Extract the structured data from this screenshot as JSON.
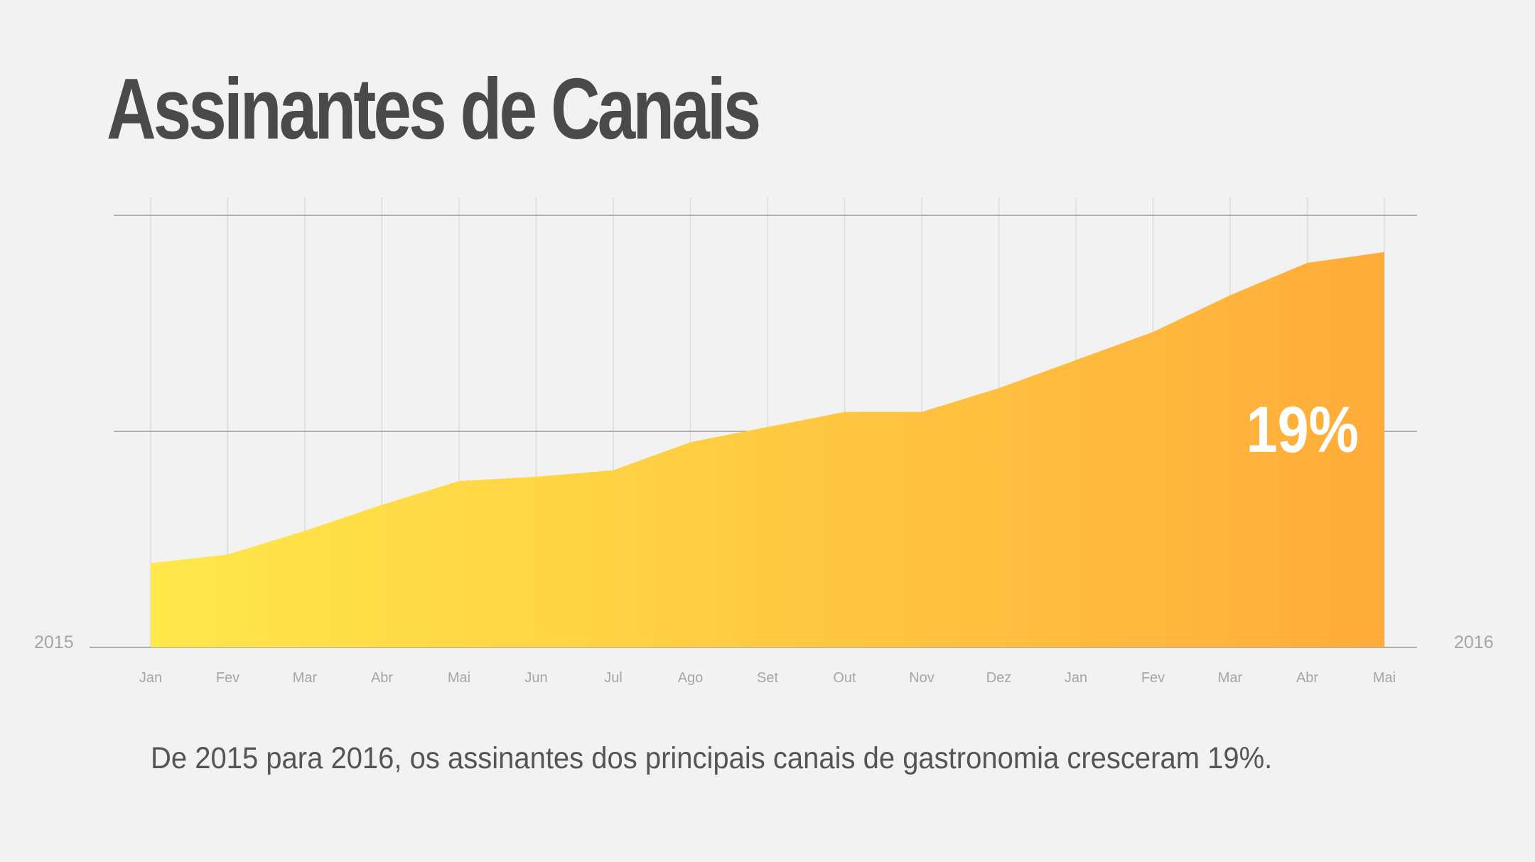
{
  "colors": {
    "background": "#f2f2f2",
    "title": "#4a4a4a",
    "gradient_start": "#ffe84a",
    "gradient_end": "#ffac3a",
    "major_grid": "#9a9a9a",
    "minor_grid": "#dcdcdc",
    "tick_label": "#a6a6a6",
    "highlight_label": "#ffffff"
  },
  "chart_data": {
    "type": "area",
    "title": "Assinantes de Canais",
    "categories": [
      "Jan",
      "Fev",
      "Mar",
      "Abr",
      "Mai",
      "Jun",
      "Jul",
      "Ago",
      "Set",
      "Out",
      "Nov",
      "Dez",
      "Jan",
      "Fev",
      "Mar",
      "Abr",
      "Mai"
    ],
    "year_start": "2015",
    "year_end": "2016",
    "series": [
      {
        "values": [
          0.39,
          0.43,
          0.54,
          0.66,
          0.77,
          0.79,
          0.82,
          0.95,
          1.02,
          1.09,
          1.09,
          1.2,
          1.33,
          1.46,
          1.63,
          1.78,
          1.83
        ]
      }
    ],
    "ylim": [
      0,
      2
    ],
    "major_gridlines": [
      0,
      1,
      2
    ],
    "grid": true,
    "legend": "none",
    "annotation": "19%",
    "xlabel": "",
    "ylabel": ""
  },
  "caption": "De 2015 para 2016, os assinantes dos principais canais de gastronomia cresceram 19%."
}
